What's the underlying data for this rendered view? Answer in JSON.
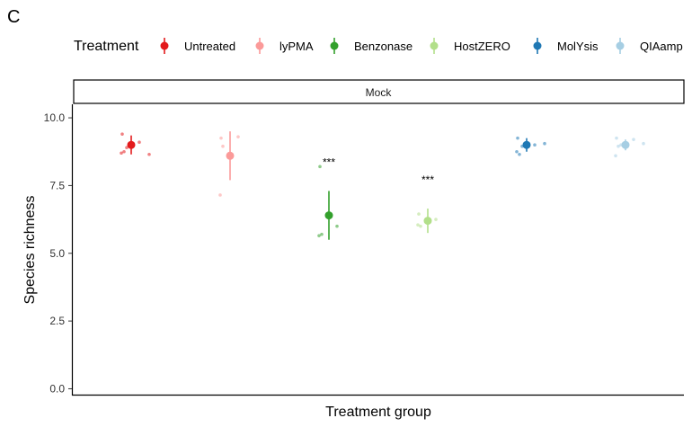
{
  "panel_label": "C",
  "chart_data": {
    "type": "scatter",
    "title": "",
    "facet": "Mock",
    "xlabel": "Treatment group",
    "ylabel": "Species richness",
    "ylim": [
      -0.25,
      10.5
    ],
    "yticks": [
      0.0,
      2.5,
      5.0,
      7.5,
      10.0
    ],
    "ytick_labels": [
      "0.0",
      "2.5",
      "5.0",
      "7.5",
      "10.0"
    ],
    "legend_title": "Treatment",
    "groups": [
      {
        "name": "Untreated",
        "color": "#E31A1C",
        "mean": 9.0,
        "lower": 8.65,
        "upper": 9.35,
        "points": [
          9.4,
          9.1,
          8.75,
          8.7,
          8.9,
          8.65,
          9.05
        ],
        "annotation": ""
      },
      {
        "name": "lyPMA",
        "color": "#FB9A99",
        "mean": 8.6,
        "lower": 7.7,
        "upper": 9.5,
        "points": [
          9.25,
          9.3,
          8.95,
          7.15
        ],
        "annotation": ""
      },
      {
        "name": "Benzonase",
        "color": "#33A02C",
        "mean": 6.4,
        "lower": 5.5,
        "upper": 7.3,
        "points": [
          8.2,
          6.0,
          5.7,
          5.65
        ],
        "annotation": "***"
      },
      {
        "name": "HostZERO",
        "color": "#B2DF8A",
        "mean": 6.2,
        "lower": 5.75,
        "upper": 6.65,
        "points": [
          6.45,
          6.25,
          6.0,
          6.05
        ],
        "annotation": "***"
      },
      {
        "name": "MolYsis",
        "color": "#1F78B4",
        "mean": 9.0,
        "lower": 8.75,
        "upper": 9.25,
        "points": [
          9.25,
          9.0,
          8.65,
          8.75,
          8.95,
          9.05
        ],
        "annotation": ""
      },
      {
        "name": "QIAamp",
        "color": "#A6CEE3",
        "mean": 9.0,
        "lower": 8.8,
        "upper": 9.2,
        "points": [
          9.25,
          9.2,
          8.95,
          8.6,
          9.0,
          9.05
        ],
        "annotation": ""
      }
    ]
  }
}
